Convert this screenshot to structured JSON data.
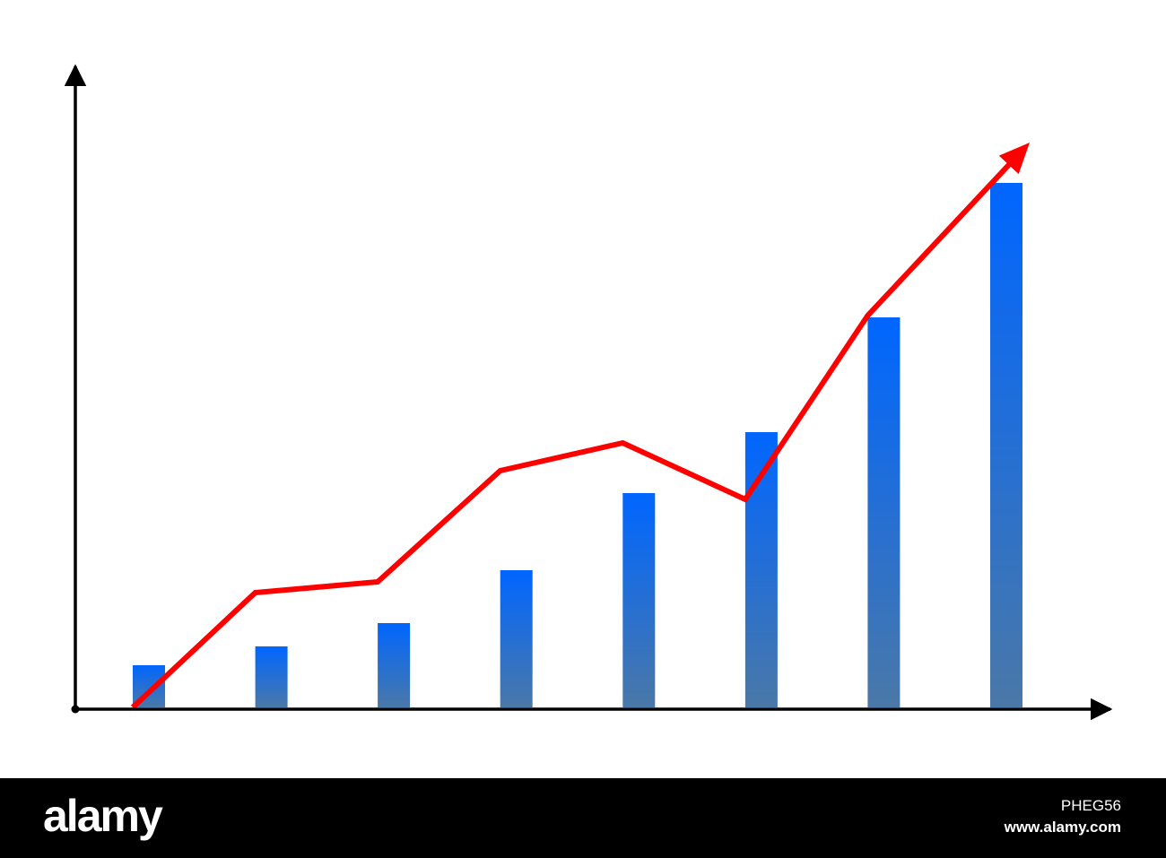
{
  "chart_data": {
    "type": "bar",
    "categories": [
      "",
      "",
      "",
      "",
      "",
      "",
      "",
      ""
    ],
    "series": [
      {
        "kind": "bar",
        "values": [
          47,
          68,
          94,
          153,
          239,
          307,
          435,
          585
        ]
      },
      {
        "kind": "line",
        "values": [
          0,
          128,
          140,
          264,
          295,
          232,
          437,
          630
        ],
        "end_marker": "arrow"
      }
    ],
    "title": "",
    "xlabel": "",
    "ylabel": "",
    "ylim": [
      0,
      715
    ],
    "grid": false,
    "legend": "none",
    "colors": {
      "bar_top": "#0066ff",
      "bar_bottom": "#4a78a8",
      "line": "#ff0000",
      "axis": "#000000"
    }
  },
  "footer": {
    "brand": "alamy",
    "image_id": "PHEG56",
    "site": "www.alamy.com"
  }
}
